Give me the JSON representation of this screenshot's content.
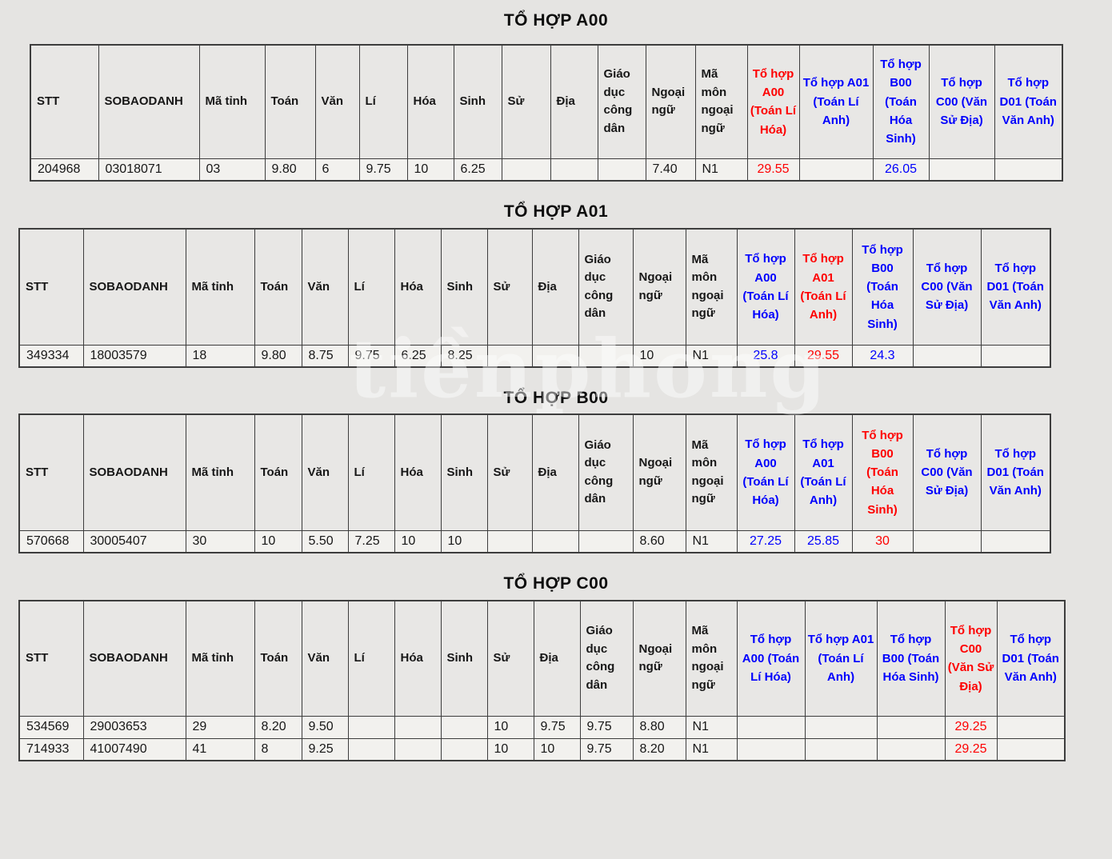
{
  "watermark": "tiềnphong",
  "colors": {
    "combo_blue": "#0000fd",
    "combo_red": "#fe0000",
    "page_background": "#e5e4e2",
    "header_cell_background": "#e8e7e5",
    "data_cell_background": "#f2f1ee"
  },
  "column_headers": [
    "STT",
    "SOBAODANH",
    "Mã tỉnh",
    "Toán",
    "Văn",
    "Lí",
    "Hóa",
    "Sinh",
    "Sử",
    "Địa",
    "Giáo dục công dân",
    "Ngoại ngữ",
    "Mã môn ngoại ngữ",
    "Tổ hợp A00 (Toán Lí Hóa)",
    "Tổ hợp A01 (Toán Lí Anh)",
    "Tổ hợp B00 (Toán Hóa Sinh)",
    "Tổ hợp C00 (Văn Sử Địa)",
    "Tổ hợp D01 (Toán Văn Anh)"
  ],
  "combo_start_index": 13,
  "tables": [
    {
      "id": "A00",
      "title": "TỔ HỢP A00",
      "highlight_column": 13,
      "rows": [
        [
          "204968",
          "03018071",
          "03",
          "9.80",
          "6",
          "9.75",
          "10",
          "6.25",
          "",
          "",
          "",
          "7.40",
          "N1",
          "29.55",
          "",
          "26.05",
          "",
          ""
        ]
      ]
    },
    {
      "id": "A01",
      "title": "TỔ HỢP A01",
      "highlight_column": 14,
      "rows": [
        [
          "349334",
          "18003579",
          "18",
          "9.80",
          "8.75",
          "9.75",
          "6.25",
          "8.25",
          "",
          "",
          "",
          "10",
          "N1",
          "25.8",
          "29.55",
          "24.3",
          "",
          ""
        ]
      ]
    },
    {
      "id": "B00",
      "title": "TỔ HỢP B00",
      "highlight_column": 15,
      "rows": [
        [
          "570668",
          "30005407",
          "30",
          "10",
          "5.50",
          "7.25",
          "10",
          "10",
          "",
          "",
          "",
          "8.60",
          "N1",
          "27.25",
          "25.85",
          "30",
          "",
          ""
        ]
      ]
    },
    {
      "id": "C00",
      "title": "TỔ HỢP C00",
      "highlight_column": 16,
      "rows": [
        [
          "534569",
          "29003653",
          "29",
          "8.20",
          "9.50",
          "",
          "",
          "",
          "10",
          "9.75",
          "9.75",
          "8.80",
          "N1",
          "",
          "",
          "",
          "29.25",
          ""
        ],
        [
          "714933",
          "41007490",
          "41",
          "8",
          "9.25",
          "",
          "",
          "",
          "10",
          "10",
          "9.75",
          "8.20",
          "N1",
          "",
          "",
          "",
          "29.25",
          ""
        ]
      ]
    }
  ]
}
